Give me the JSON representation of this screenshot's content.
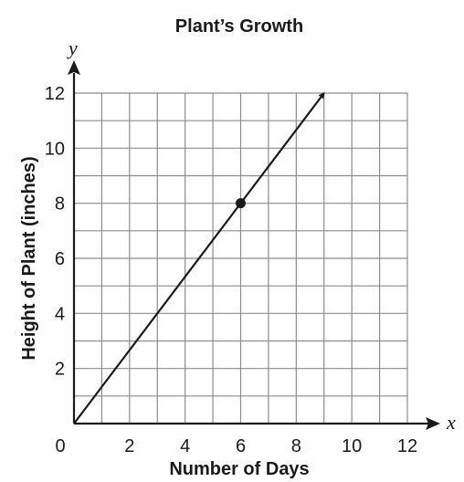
{
  "chart_data": {
    "type": "line",
    "title": "Plant’s Growth",
    "xlabel": "Number of Days",
    "ylabel": "Height of Plant (inches)",
    "x_var": "x",
    "y_var": "y",
    "xlim": [
      0,
      12
    ],
    "ylim": [
      0,
      12
    ],
    "x_ticks": [
      0,
      2,
      4,
      6,
      8,
      10,
      12
    ],
    "y_ticks": [
      2,
      4,
      6,
      8,
      10,
      12
    ],
    "x_tick_labels": [
      "0",
      "2",
      "4",
      "6",
      "8",
      "10",
      "12"
    ],
    "y_tick_labels": [
      "2",
      "4",
      "6",
      "8",
      "10",
      "12"
    ],
    "grid": true,
    "grid_step": 1,
    "series": [
      {
        "x": [
          0,
          9
        ],
        "y": [
          0,
          12
        ],
        "arrow_end": true
      }
    ],
    "highlighted_points": [
      {
        "x": 6,
        "y": 8
      }
    ],
    "colors": {
      "ink": "#1a1a1a",
      "grid": "#8c8c8c"
    }
  }
}
